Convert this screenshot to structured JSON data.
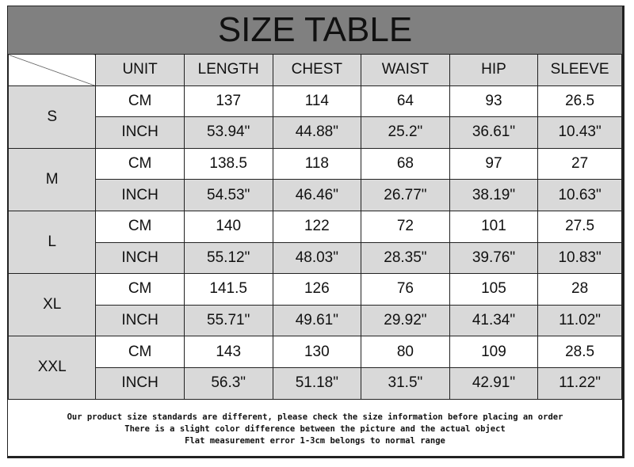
{
  "title": "SIZE TABLE",
  "headers": [
    "UNIT",
    "LENGTH",
    "CHEST",
    "WAIST",
    "HIP",
    "SLEEVE"
  ],
  "sizes": [
    {
      "size": "S",
      "cm": [
        "CM",
        "137",
        "114",
        "64",
        "93",
        "26.5"
      ],
      "inch": [
        "INCH",
        "53.94\"",
        "44.88\"",
        "25.2\"",
        "36.61\"",
        "10.43\""
      ]
    },
    {
      "size": "M",
      "cm": [
        "CM",
        "138.5",
        "118",
        "68",
        "97",
        "27"
      ],
      "inch": [
        "INCH",
        "54.53\"",
        "46.46\"",
        "26.77\"",
        "38.19\"",
        "10.63\""
      ]
    },
    {
      "size": "L",
      "cm": [
        "CM",
        "140",
        "122",
        "72",
        "101",
        "27.5"
      ],
      "inch": [
        "INCH",
        "55.12\"",
        "48.03\"",
        "28.35\"",
        "39.76\"",
        "10.83\""
      ]
    },
    {
      "size": "XL",
      "cm": [
        "CM",
        "141.5",
        "126",
        "76",
        "105",
        "28"
      ],
      "inch": [
        "INCH",
        "55.71\"",
        "49.61\"",
        "29.92\"",
        "41.34\"",
        "11.02\""
      ]
    },
    {
      "size": "XXL",
      "cm": [
        "CM",
        "143",
        "130",
        "80",
        "109",
        "28.5"
      ],
      "inch": [
        "INCH",
        "56.3\"",
        "51.18\"",
        "31.5\"",
        "42.91\"",
        "11.22\""
      ]
    }
  ],
  "notes": [
    "Our product size standards are different, please check the size information before placing an order",
    "There is a slight color difference between the picture and the actual object",
    "Flat measurement error 1-3cm belongs to normal range"
  ]
}
